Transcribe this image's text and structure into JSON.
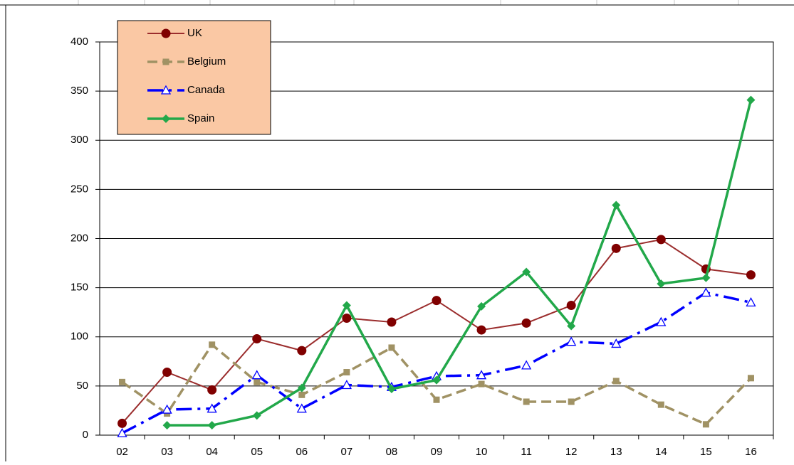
{
  "chart_data": {
    "type": "line",
    "categories": [
      "02",
      "03",
      "04",
      "05",
      "06",
      "07",
      "08",
      "09",
      "10",
      "11",
      "12",
      "13",
      "14",
      "15",
      "16"
    ],
    "series": [
      {
        "name": "UK",
        "color": "#9b2d2d",
        "marker": "circle",
        "dash": "solid",
        "values": [
          12,
          64,
          46,
          98,
          86,
          119,
          115,
          137,
          107,
          114,
          132,
          190,
          199,
          169,
          163
        ]
      },
      {
        "name": "Belgium",
        "color": "#a09264",
        "marker": "square",
        "dash": "dash",
        "values": [
          54,
          22,
          92,
          54,
          41,
          64,
          89,
          36,
          52,
          34,
          34,
          55,
          31,
          11,
          58
        ]
      },
      {
        "name": "Canada",
        "color": "#0000ff",
        "marker": "triangle",
        "dash": "dashdot",
        "values": [
          2,
          26,
          27,
          61,
          27,
          51,
          49,
          60,
          61,
          71,
          95,
          93,
          115,
          145,
          135
        ]
      },
      {
        "name": "Spain",
        "color": "#22a84a",
        "marker": "diamond",
        "dash": "solid",
        "values": [
          null,
          10,
          10,
          20,
          48,
          132,
          47,
          56,
          131,
          166,
          111,
          234,
          154,
          160,
          341
        ]
      }
    ],
    "ylim": [
      0,
      400
    ],
    "yticks": [
      0,
      50,
      100,
      150,
      200,
      250,
      300,
      350,
      400
    ],
    "grid": true,
    "legend": "upper left"
  }
}
